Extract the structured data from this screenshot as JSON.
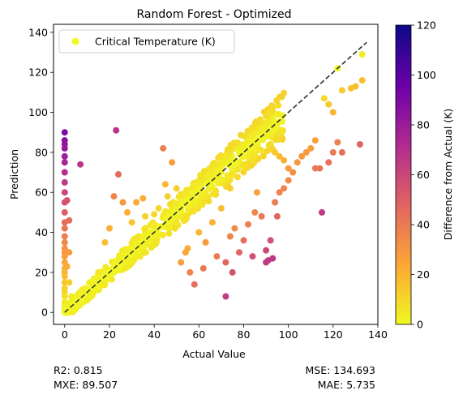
{
  "chart_data": {
    "type": "scatter",
    "title": "Random Forest - Optimized",
    "xlabel": "Actual Value",
    "ylabel": "Prediction",
    "xlim": [
      -5,
      140
    ],
    "ylim": [
      -6,
      144
    ],
    "xticks": [
      0,
      20,
      40,
      60,
      80,
      100,
      120,
      140
    ],
    "yticks": [
      0,
      20,
      40,
      60,
      80,
      100,
      120,
      140
    ],
    "grid": false,
    "legend": {
      "position": "top-left",
      "entries": [
        "Critical Temperature (K)"
      ]
    },
    "reference_line": {
      "style": "dashed",
      "color": "#333333",
      "from": [
        0,
        0
      ],
      "to": [
        135,
        135
      ]
    },
    "colorbar": {
      "label": "Difference from Actual (K)",
      "range": [
        0,
        120
      ],
      "ticks": [
        0,
        20,
        40,
        60,
        80,
        100,
        120
      ],
      "colormap": [
        "#0d0887",
        "#6a00a8",
        "#b12a90",
        "#e16462",
        "#fca636",
        "#f0f921"
      ]
    },
    "points": [
      [
        0,
        90
      ],
      [
        0,
        86
      ],
      [
        0,
        84
      ],
      [
        0,
        82
      ],
      [
        0,
        78
      ],
      [
        0,
        75
      ],
      [
        0,
        70
      ],
      [
        0,
        65
      ],
      [
        0,
        60
      ],
      [
        0,
        55
      ],
      [
        0,
        50
      ],
      [
        0,
        45
      ],
      [
        0,
        42
      ],
      [
        0,
        38
      ],
      [
        0,
        35
      ],
      [
        0,
        32
      ],
      [
        0,
        30
      ],
      [
        0,
        28
      ],
      [
        0,
        25
      ],
      [
        0,
        22
      ],
      [
        0,
        20
      ],
      [
        0,
        18
      ],
      [
        0,
        15
      ],
      [
        0,
        12
      ],
      [
        0,
        10
      ],
      [
        0,
        8
      ],
      [
        0,
        5
      ],
      [
        0,
        3
      ],
      [
        0,
        1
      ],
      [
        1,
        56
      ],
      [
        2,
        46
      ],
      [
        2,
        30
      ],
      [
        1,
        23
      ],
      [
        2,
        15
      ],
      [
        7,
        74
      ],
      [
        3,
        8
      ],
      [
        5,
        4
      ],
      [
        10,
        6
      ],
      [
        23,
        91
      ],
      [
        24,
        69
      ],
      [
        26,
        55
      ],
      [
        22,
        58
      ],
      [
        20,
        42
      ],
      [
        18,
        35
      ],
      [
        15,
        20
      ],
      [
        28,
        50
      ],
      [
        30,
        45
      ],
      [
        32,
        55
      ],
      [
        35,
        57
      ],
      [
        36,
        48
      ],
      [
        38,
        40
      ],
      [
        40,
        49
      ],
      [
        41,
        35
      ],
      [
        42,
        52
      ],
      [
        44,
        82
      ],
      [
        45,
        64
      ],
      [
        46,
        58
      ],
      [
        48,
        75
      ],
      [
        50,
        62
      ],
      [
        50,
        45
      ],
      [
        52,
        25
      ],
      [
        54,
        30
      ],
      [
        55,
        32
      ],
      [
        56,
        20
      ],
      [
        58,
        14
      ],
      [
        60,
        40
      ],
      [
        62,
        22
      ],
      [
        63,
        35
      ],
      [
        65,
        70
      ],
      [
        66,
        45
      ],
      [
        68,
        28
      ],
      [
        70,
        52
      ],
      [
        72,
        8
      ],
      [
        72,
        25
      ],
      [
        74,
        38
      ],
      [
        75,
        20
      ],
      [
        76,
        42
      ],
      [
        78,
        30
      ],
      [
        80,
        36
      ],
      [
        82,
        44
      ],
      [
        84,
        28
      ],
      [
        85,
        50
      ],
      [
        86,
        60
      ],
      [
        88,
        48
      ],
      [
        90,
        25
      ],
      [
        90,
        31
      ],
      [
        91,
        26
      ],
      [
        92,
        36
      ],
      [
        93,
        27
      ],
      [
        94,
        55
      ],
      [
        95,
        48
      ],
      [
        96,
        60
      ],
      [
        98,
        62
      ],
      [
        100,
        66
      ],
      [
        102,
        70
      ],
      [
        104,
        75
      ],
      [
        106,
        78
      ],
      [
        108,
        80
      ],
      [
        110,
        82
      ],
      [
        112,
        72
      ],
      [
        114,
        72
      ],
      [
        115,
        50
      ],
      [
        118,
        75
      ],
      [
        120,
        80
      ],
      [
        122,
        85
      ],
      [
        124,
        80
      ],
      [
        116,
        107
      ],
      [
        118,
        104
      ],
      [
        122,
        122
      ],
      [
        124,
        111
      ],
      [
        128,
        112
      ],
      [
        130,
        113
      ],
      [
        132,
        84
      ],
      [
        133,
        129
      ],
      [
        133,
        116
      ],
      [
        120,
        100
      ],
      [
        112,
        86
      ],
      [
        60,
        64
      ],
      [
        64,
        68
      ],
      [
        66,
        72
      ],
      [
        68,
        66
      ],
      [
        70,
        75
      ],
      [
        72,
        78
      ],
      [
        74,
        62
      ],
      [
        76,
        76
      ],
      [
        78,
        80
      ],
      [
        80,
        84
      ],
      [
        82,
        78
      ],
      [
        84,
        82
      ],
      [
        86,
        86
      ],
      [
        88,
        88
      ],
      [
        90,
        91
      ],
      [
        92,
        84
      ],
      [
        94,
        80
      ],
      [
        96,
        78
      ],
      [
        98,
        76
      ],
      [
        100,
        72
      ],
      [
        90,
        98
      ],
      [
        94,
        95
      ],
      [
        92,
        90
      ],
      [
        88,
        92
      ],
      [
        86,
        85
      ],
      [
        84,
        79
      ]
    ]
  },
  "metrics": {
    "r2": "R2: 0.815",
    "mse": "MSE: 134.693",
    "mxe": "MXE: 89.507",
    "mae": "MAE: 5.735"
  }
}
